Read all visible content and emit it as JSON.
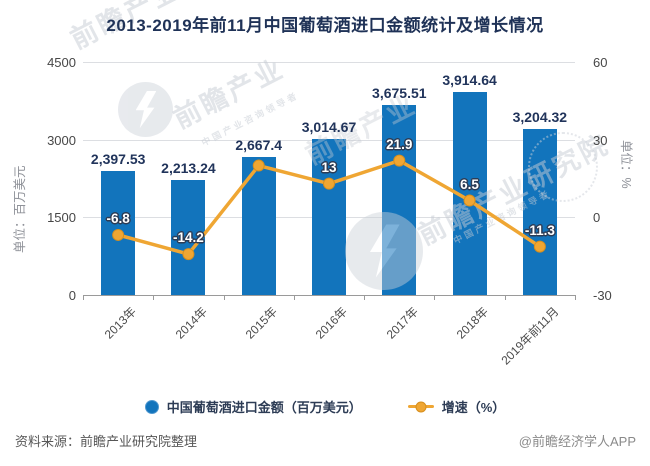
{
  "title": "2013-2019年前11月中国葡萄酒进口金额统计及增长情况",
  "chart_data": {
    "type": "bar+line",
    "categories": [
      "2013年",
      "2014年",
      "2015年",
      "2016年",
      "2017年",
      "2018年",
      "2019年前11月"
    ],
    "series": [
      {
        "name": "中国葡萄酒进口金额（百万美元）",
        "type": "bar",
        "values": [
          2397.53,
          2213.24,
          2667.4,
          3014.67,
          3675.51,
          3914.64,
          3204.32
        ],
        "labels": [
          "2,397.53",
          "2,213.24",
          "2,667.4",
          "3,014.67",
          "3,675.51",
          "3,914.64",
          "3,204.32"
        ]
      },
      {
        "name": "增速（%）",
        "type": "line",
        "values": [
          -6.8,
          -14.2,
          20,
          13,
          21.9,
          6.5,
          -11.3
        ],
        "labels": [
          "-6.8",
          "-14.2",
          "",
          "13",
          "21.9",
          "6.5",
          "-11.3"
        ]
      }
    ],
    "left_axis": {
      "name": "单位：百万美元",
      "ticks": [
        "4500",
        "3000",
        "1500",
        "0"
      ],
      "min": 0,
      "max": 4500
    },
    "right_axis": {
      "name": "单位：%",
      "ticks": [
        "60",
        "30",
        "0",
        "-30"
      ],
      "min": -30,
      "max": 60
    },
    "legend": [
      "中国葡萄酒进口金额（百万美元）",
      "增速（%）"
    ],
    "grid": true,
    "legend_position": "bottom"
  },
  "watermarks": {
    "brand_short": "前瞻产业",
    "brand_full": "前瞻产业研究院",
    "tagline": "中国产业咨询领导者"
  },
  "footer": {
    "source": "资料来源：前瞻产业研究院整理",
    "credit": "@前瞻经济学人APP"
  },
  "colors": {
    "bar": "#1274bc",
    "line": "#efa633",
    "title_text": "#1f3257",
    "bar_label_text": "#21345b",
    "line_label_fill": "#ffffff",
    "line_label_outline": "#2c3c55",
    "axis_text": "#474747",
    "axis_name_text": "#8f9299",
    "grid_line": "#dcdee2",
    "axis_line": "#9a9a9a"
  }
}
